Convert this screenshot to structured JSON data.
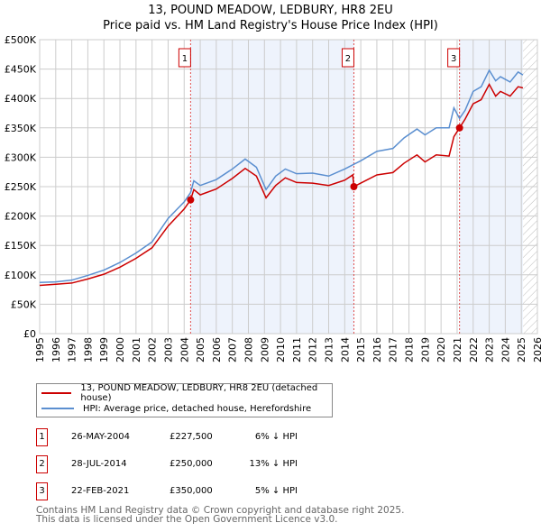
{
  "chart_data": {
    "type": "line",
    "title": "13, POUND MEADOW, LEDBURY, HR8 2EU",
    "subtitle": "Price paid vs. HM Land Registry's House Price Index (HPI)",
    "xlim": [
      1995,
      2026
    ],
    "ylim": [
      0,
      500000
    ],
    "x_ticks": [
      "1995",
      "1996",
      "1997",
      "1998",
      "1999",
      "2000",
      "2001",
      "2002",
      "2003",
      "2004",
      "2005",
      "2006",
      "2007",
      "2008",
      "2009",
      "2010",
      "2011",
      "2012",
      "2013",
      "2014",
      "2015",
      "2016",
      "2017",
      "2018",
      "2019",
      "2020",
      "2021",
      "2022",
      "2023",
      "2024",
      "2025",
      "2026"
    ],
    "y_ticks": [
      "£0",
      "£50K",
      "£100K",
      "£150K",
      "£200K",
      "£250K",
      "£300K",
      "£350K",
      "£400K",
      "£450K",
      "£500K"
    ],
    "grid": true,
    "series": [
      {
        "name": "13, POUND MEADOW, LEDBURY, HR8 2EU (detached house)",
        "color": "#cc0000",
        "x": [
          1995,
          1996,
          1997,
          1998,
          1999,
          2000,
          2001,
          2002,
          2003,
          2004,
          2004.4,
          2004.6,
          2005,
          2006,
          2007,
          2007.8,
          2008.5,
          2009.1,
          2009.7,
          2010.3,
          2011,
          2012,
          2013,
          2014,
          2014.5,
          2014.57,
          2015,
          2016,
          2017,
          2017.7,
          2018.5,
          2019,
          2019.7,
          2020.5,
          2020.8,
          2021.15,
          2021.5,
          2022,
          2022.5,
          2023,
          2023.4,
          2023.7,
          2024.3,
          2024.8,
          2025.1
        ],
        "y": [
          82000,
          84000,
          86000,
          93000,
          101000,
          113000,
          128000,
          146000,
          183000,
          212000,
          227500,
          245000,
          236000,
          246000,
          264000,
          281000,
          268000,
          231000,
          252000,
          265000,
          257000,
          256000,
          252000,
          261000,
          270000,
          250000,
          256000,
          270000,
          274000,
          290000,
          304000,
          292000,
          304000,
          302000,
          335000,
          350000,
          365000,
          391000,
          398000,
          424000,
          404000,
          412000,
          404000,
          420000,
          418000
        ]
      },
      {
        "name": "HPI: Average price, detached house, Herefordshire",
        "color": "#5b8fd0",
        "x": [
          1995,
          1996,
          1997,
          1998,
          1999,
          2000,
          2001,
          2002,
          2003,
          2004,
          2004.4,
          2004.6,
          2005,
          2006,
          2007,
          2007.8,
          2008.5,
          2009.1,
          2009.7,
          2010.3,
          2011,
          2012,
          2013,
          2014,
          2014.57,
          2015,
          2016,
          2017,
          2017.7,
          2018.5,
          2019,
          2019.7,
          2020.5,
          2020.8,
          2021.15,
          2021.5,
          2022,
          2022.5,
          2023,
          2023.4,
          2023.7,
          2024.3,
          2024.8,
          2025.1
        ],
        "y": [
          87000,
          88000,
          91000,
          99000,
          108000,
          121000,
          137000,
          156000,
          196000,
          224000,
          240000,
          260000,
          252000,
          262000,
          280000,
          297000,
          283000,
          245000,
          268000,
          280000,
          272000,
          273000,
          268000,
          280000,
          288000,
          294000,
          310000,
          315000,
          333000,
          348000,
          338000,
          350000,
          350000,
          384000,
          366000,
          380000,
          412000,
          420000,
          448000,
          430000,
          437000,
          428000,
          445000,
          440000
        ]
      }
    ],
    "sales": [
      {
        "label": "1",
        "x": 2004.4,
        "date": "26-MAY-2004",
        "price": 227500,
        "price_text": "£227,500",
        "delta": "6% ↓ HPI"
      },
      {
        "label": "2",
        "x": 2014.57,
        "date": "28-JUL-2014",
        "price": 250000,
        "price_text": "£250,000",
        "delta": "13% ↓ HPI"
      },
      {
        "label": "3",
        "x": 2021.15,
        "date": "22-FEB-2021",
        "price": 350000,
        "price_text": "£350,000",
        "delta": "5% ↓ HPI"
      }
    ],
    "forecast_start": 2025.1,
    "legend_placement": "below"
  },
  "legend": {
    "red": "13, POUND MEADOW, LEDBURY, HR8 2EU (detached house)",
    "blue": "HPI: Average price, detached house, Herefordshire"
  },
  "footer": {
    "line1": "Contains HM Land Registry data © Crown copyright and database right 2025.",
    "line2": "This data is licensed under the Open Government Licence v3.0."
  }
}
